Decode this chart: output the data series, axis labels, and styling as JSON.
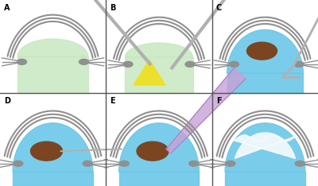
{
  "bg_color": "#ffffff",
  "panel_labels": [
    "A",
    "B",
    "C",
    "D",
    "E",
    "F"
  ],
  "grid_color": "#555555",
  "grid_lw": 1.0,
  "cornea_color": "#909090",
  "cornea_lw": 1.5,
  "green_fluid": "#c8e8c0",
  "yellow_fluid": "#f0e020",
  "blue_fluid": "#6cc8e8",
  "brown_lens": "#7a4520",
  "purple_tube": "#c8a0d8",
  "clip_color": "#909090",
  "white_bubble": "#e8f4f8",
  "instrument_color": "#b0b0b0"
}
